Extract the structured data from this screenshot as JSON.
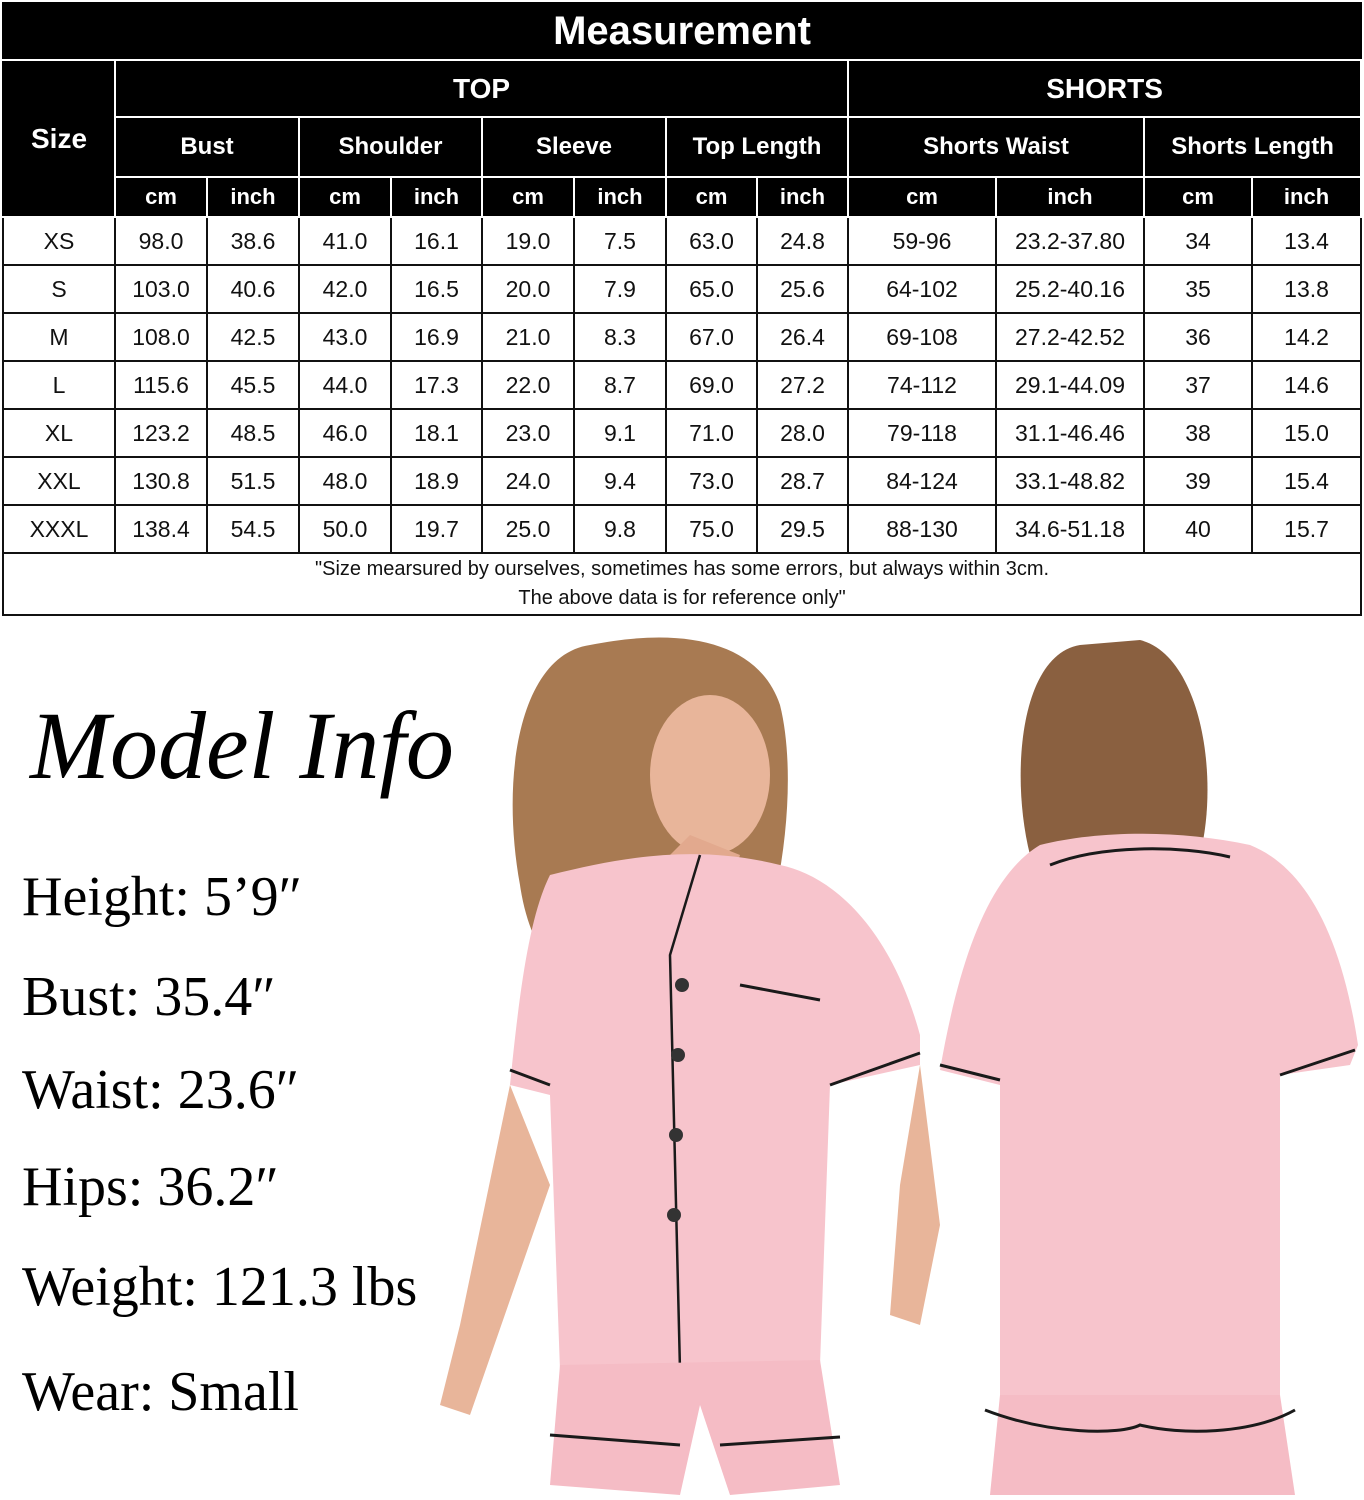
{
  "table": {
    "title": "Measurement",
    "size_label": "Size",
    "groups": [
      "TOP",
      "SHORTS"
    ],
    "measures": [
      "Bust",
      "Shoulder",
      "Sleeve",
      "Top Length",
      "Shorts Waist",
      "Shorts Length"
    ],
    "units": [
      "cm",
      "inch"
    ],
    "rows": [
      [
        "XS",
        "98.0",
        "38.6",
        "41.0",
        "16.1",
        "19.0",
        "7.5",
        "63.0",
        "24.8",
        "59-96",
        "23.2-37.80",
        "34",
        "13.4"
      ],
      [
        "S",
        "103.0",
        "40.6",
        "42.0",
        "16.5",
        "20.0",
        "7.9",
        "65.0",
        "25.6",
        "64-102",
        "25.2-40.16",
        "35",
        "13.8"
      ],
      [
        "M",
        "108.0",
        "42.5",
        "43.0",
        "16.9",
        "21.0",
        "8.3",
        "67.0",
        "26.4",
        "69-108",
        "27.2-42.52",
        "36",
        "14.2"
      ],
      [
        "L",
        "115.6",
        "45.5",
        "44.0",
        "17.3",
        "22.0",
        "8.7",
        "69.0",
        "27.2",
        "74-112",
        "29.1-44.09",
        "37",
        "14.6"
      ],
      [
        "XL",
        "123.2",
        "48.5",
        "46.0",
        "18.1",
        "23.0",
        "9.1",
        "71.0",
        "28.0",
        "79-118",
        "31.1-46.46",
        "38",
        "15.0"
      ],
      [
        "XXL",
        "130.8",
        "51.5",
        "48.0",
        "18.9",
        "24.0",
        "9.4",
        "73.0",
        "28.7",
        "84-124",
        "33.1-48.82",
        "39",
        "15.4"
      ],
      [
        "XXXL",
        "138.4",
        "54.5",
        "50.0",
        "19.7",
        "25.0",
        "9.8",
        "75.0",
        "29.5",
        "88-130",
        "34.6-51.18",
        "40",
        "15.7"
      ]
    ],
    "note_line1": "\"Size mearsured by ourselves, sometimes has some errors, but always within 3cm.",
    "note_line2": "The above data is for reference only\""
  },
  "model_info": {
    "title": "Model Info",
    "specs": [
      "Height: 5’9″",
      "Bust: 35.4″",
      "Waist: 23.6″",
      "Hips: 36.2″",
      "Weight: 121.3 lbs",
      "Wear: Small"
    ]
  },
  "colors": {
    "pajama_pink": "#f7c4cc",
    "piping": "#1a1a1a",
    "header_bg": "#000000"
  }
}
